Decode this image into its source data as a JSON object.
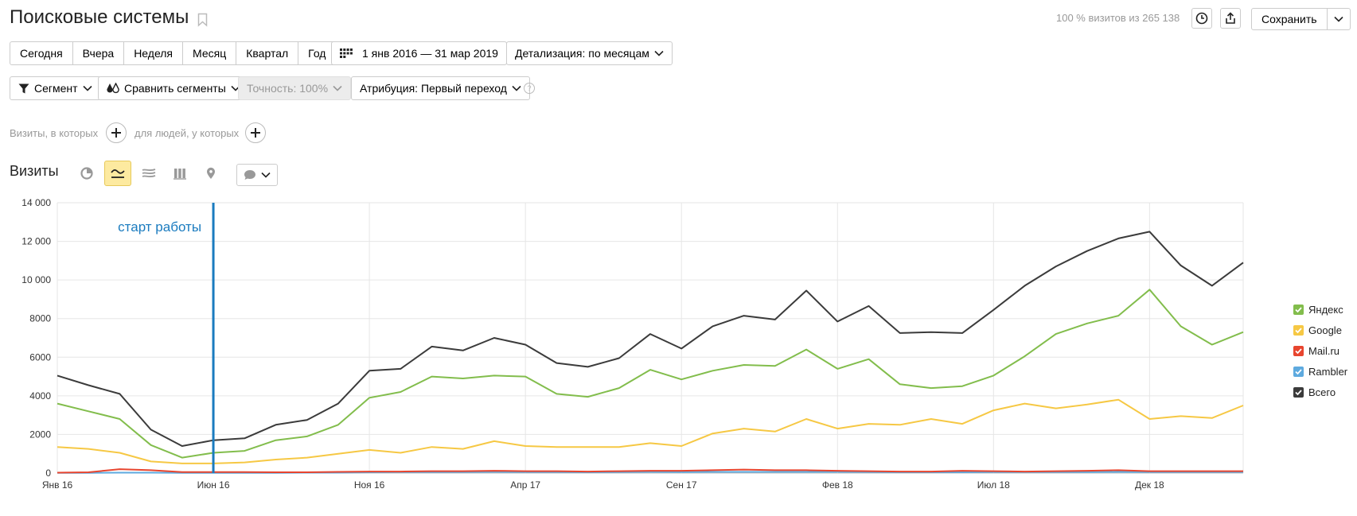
{
  "header": {
    "title": "Поисковые системы",
    "visits_info": "100 % визитов из 265 138",
    "save_label": "Сохранить"
  },
  "periods": [
    "Сегодня",
    "Вчера",
    "Неделя",
    "Месяц",
    "Квартал",
    "Год"
  ],
  "date_range": "1 янв 2016 — 31 мар 2019",
  "detail": "Детализация: по месяцам",
  "segment": "Сегмент",
  "compare": "Сравнить сегменты",
  "accuracy": "Точность: 100%",
  "attribution": "Атрибуция: Первый переход",
  "help": "?",
  "filters": {
    "visits_label": "Визиты, в которых",
    "people_label": "для людей, у которых"
  },
  "section_title": "Визиты",
  "colors": {
    "yandex": "#82bd4c",
    "google": "#f6c844",
    "mail": "#e8452f",
    "rambler": "#5eaadf",
    "total": "#3b3b3b",
    "annotation": "#1a7bbf"
  },
  "chart_data": {
    "type": "line",
    "x": [
      "2016-01",
      "2016-02",
      "2016-03",
      "2016-04",
      "2016-05",
      "2016-06",
      "2016-07",
      "2016-08",
      "2016-09",
      "2016-10",
      "2016-11",
      "2016-12",
      "2017-01",
      "2017-02",
      "2017-03",
      "2017-04",
      "2017-05",
      "2017-06",
      "2017-07",
      "2017-08",
      "2017-09",
      "2017-10",
      "2017-11",
      "2017-12",
      "2018-01",
      "2018-02",
      "2018-03",
      "2018-04",
      "2018-05",
      "2018-06",
      "2018-07",
      "2018-08",
      "2018-09",
      "2018-10",
      "2018-11",
      "2018-12",
      "2019-01",
      "2019-02",
      "2019-03"
    ],
    "x_tick_labels": [
      {
        "x": "2016-01",
        "label": "Янв 16"
      },
      {
        "x": "2016-06",
        "label": "Июн 16"
      },
      {
        "x": "2016-11",
        "label": "Ноя 16"
      },
      {
        "x": "2017-04",
        "label": "Апр 17"
      },
      {
        "x": "2017-09",
        "label": "Сен 17"
      },
      {
        "x": "2018-02",
        "label": "Фев 18"
      },
      {
        "x": "2018-07",
        "label": "Июл 18"
      },
      {
        "x": "2018-12",
        "label": "Дек 18"
      }
    ],
    "ylim": [
      0,
      14000
    ],
    "y_ticks": [
      0,
      2000,
      4000,
      6000,
      8000,
      10000,
      12000,
      14000
    ],
    "y_tick_labels": [
      "0",
      "2000",
      "4000",
      "6000",
      "8000",
      "10 000",
      "12 000",
      "14 000"
    ],
    "grid": true,
    "legend_position": "right",
    "series": [
      {
        "name": "Яндекс",
        "color": "#82bd4c",
        "values": [
          3600,
          3200,
          2800,
          1450,
          800,
          1050,
          1150,
          1700,
          1900,
          2500,
          3900,
          4200,
          5000,
          4900,
          5050,
          5000,
          4100,
          3950,
          4400,
          5350,
          4850,
          5300,
          5600,
          5550,
          6400,
          5400,
          5900,
          4600,
          4400,
          4500,
          5050,
          6050,
          7200,
          7750,
          8150,
          9500,
          7600,
          6650,
          7300
        ]
      },
      {
        "name": "Google",
        "color": "#f6c844",
        "values": [
          1350,
          1250,
          1050,
          600,
          500,
          500,
          550,
          700,
          800,
          1000,
          1200,
          1050,
          1350,
          1250,
          1650,
          1400,
          1350,
          1350,
          1350,
          1550,
          1400,
          2050,
          2300,
          2150,
          2800,
          2300,
          2550,
          2500,
          2800,
          2550,
          3250,
          3600,
          3350,
          3550,
          3800,
          2800,
          2950,
          2850,
          3500
        ]
      },
      {
        "name": "Mail.ru",
        "color": "#e8452f",
        "values": [
          20,
          40,
          200,
          150,
          50,
          50,
          50,
          40,
          40,
          60,
          80,
          80,
          100,
          100,
          120,
          100,
          100,
          80,
          100,
          120,
          120,
          150,
          180,
          150,
          150,
          120,
          100,
          80,
          80,
          120,
          100,
          80,
          100,
          120,
          150,
          100,
          100,
          100,
          100
        ]
      },
      {
        "name": "Rambler",
        "color": "#5eaadf",
        "values": [
          10,
          10,
          20,
          20,
          10,
          10,
          10,
          10,
          20,
          20,
          40,
          50,
          50,
          50,
          60,
          50,
          50,
          40,
          50,
          60,
          50,
          60,
          60,
          60,
          60,
          60,
          50,
          40,
          40,
          40,
          50,
          50,
          50,
          50,
          60,
          50,
          50,
          50,
          50
        ]
      },
      {
        "name": "Всего",
        "color": "#3b3b3b",
        "values": [
          5050,
          4550,
          4100,
          2250,
          1400,
          1700,
          1800,
          2500,
          2750,
          3600,
          5300,
          5400,
          6550,
          6350,
          7000,
          6650,
          5700,
          5500,
          5950,
          7200,
          6450,
          7600,
          8150,
          7950,
          9450,
          7850,
          8650,
          7250,
          7300,
          7250,
          8450,
          9700,
          10700,
          11500,
          12150,
          12500,
          10750,
          9700,
          10900
        ]
      }
    ],
    "annotations": [
      {
        "x": "2016-06",
        "label": "старт работы"
      }
    ]
  }
}
